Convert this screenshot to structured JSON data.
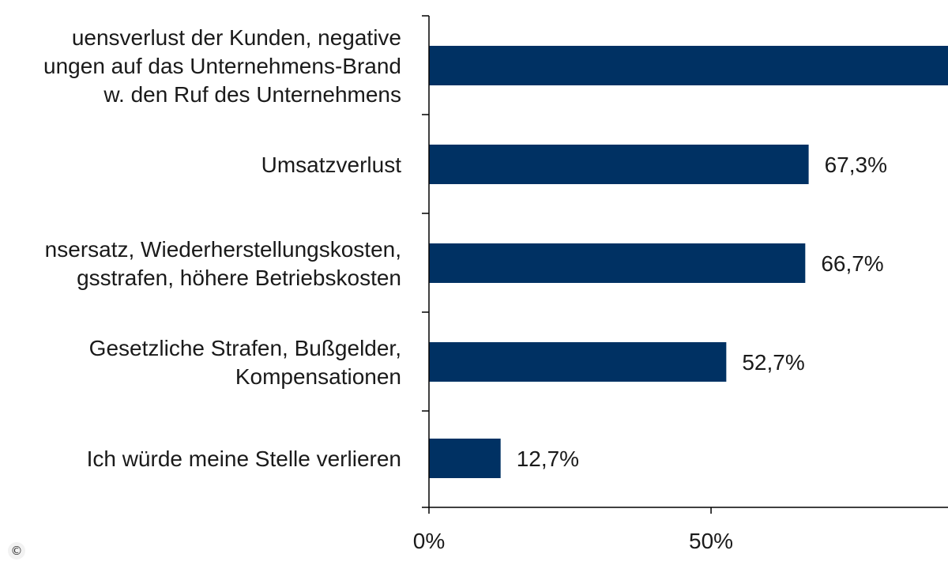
{
  "chart_data": {
    "type": "bar",
    "orientation": "horizontal",
    "categories": [
      [
        "uensverlust der Kunden, negative",
        "ungen auf das Unternehmens-Brand",
        "w. den Ruf des Unternehmens"
      ],
      [
        "Umsatzverlust"
      ],
      [
        "nsersatz, Wiederherstellungskosten,",
        "gsstrafen, höhere Betriebskosten"
      ],
      [
        "Gesetzliche Strafen, Bußgelder,",
        "Kompensationen"
      ],
      [
        "Ich würde meine Stelle verlieren"
      ]
    ],
    "values": [
      92,
      67.3,
      66.7,
      52.7,
      12.7
    ],
    "value_labels": [
      "",
      "67,3%",
      "66,7%",
      "52,7%",
      "12,7%"
    ],
    "xlim": [
      0,
      92
    ],
    "x_ticks": [
      {
        "value": 0,
        "label": "0%"
      },
      {
        "value": 50,
        "label": "50%"
      }
    ],
    "bar_color": "#003163",
    "axis_color": "#000000"
  },
  "watermark": {
    "symbol": "©"
  }
}
